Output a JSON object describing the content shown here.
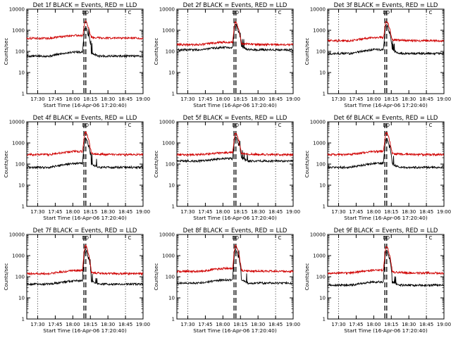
{
  "chart_data": {
    "type": "line",
    "grid": false,
    "yscale": "log",
    "xlabel": "Start Time (16-Apr-06 17:20:40)",
    "ylabel": "Counts/sec",
    "xticks": [
      "17:30",
      "17:45",
      "18:00",
      "18:15",
      "18:30",
      "18:45",
      "19:00"
    ],
    "yticks": [
      "1",
      "10",
      "100",
      "1000",
      "10000"
    ],
    "ylim": [
      1,
      10000
    ],
    "xlim": [
      "17:20:40",
      "19:00"
    ],
    "markers": [
      "D",
      "D",
      "C"
    ],
    "colors": {
      "events": "#000000",
      "lld": "#d00000"
    },
    "charts": [
      {
        "title": "Det 1f BLACK = Events, RED = LLD",
        "series": [
          {
            "name": "Events",
            "color": "#000000",
            "base": 60,
            "peak": 1300,
            "rise": 0.95,
            "spikes": 1
          },
          {
            "name": "LLD",
            "color": "#d00000",
            "base": 420,
            "peak": 2600,
            "rise": 0.6,
            "spikes": 0
          }
        ]
      },
      {
        "title": "Det 2f BLACK = Events, RED = LLD",
        "series": [
          {
            "name": "Events",
            "color": "#000000",
            "base": 120,
            "peak": 1900,
            "rise": 0.5,
            "spikes": 1
          },
          {
            "name": "LLD",
            "color": "#d00000",
            "base": 210,
            "peak": 2600,
            "rise": 0.5,
            "spikes": 0
          }
        ]
      },
      {
        "title": "Det 3f BLACK = Events, RED = LLD",
        "series": [
          {
            "name": "Events",
            "color": "#000000",
            "base": 80,
            "peak": 1800,
            "rise": 0.9,
            "spikes": 1
          },
          {
            "name": "LLD",
            "color": "#d00000",
            "base": 320,
            "peak": 2700,
            "rise": 0.7,
            "spikes": 0
          }
        ]
      },
      {
        "title": "Det 4f BLACK = Events, RED = LLD",
        "series": [
          {
            "name": "Events",
            "color": "#000000",
            "base": 70,
            "peak": 1700,
            "rise": 0.9,
            "spikes": 1
          },
          {
            "name": "LLD",
            "color": "#d00000",
            "base": 280,
            "peak": 3300,
            "rise": 0.7,
            "spikes": 0
          }
        ]
      },
      {
        "title": "Det 5f BLACK = Events, RED = LLD",
        "series": [
          {
            "name": "Events",
            "color": "#000000",
            "base": 140,
            "peak": 1900,
            "rise": 0.5,
            "spikes": 1
          },
          {
            "name": "LLD",
            "color": "#d00000",
            "base": 280,
            "peak": 2900,
            "rise": 0.4,
            "spikes": 0
          }
        ]
      },
      {
        "title": "Det 6f BLACK = Events, RED = LLD",
        "series": [
          {
            "name": "Events",
            "color": "#000000",
            "base": 70,
            "peak": 1600,
            "rise": 0.9,
            "spikes": 1
          },
          {
            "name": "LLD",
            "color": "#d00000",
            "base": 280,
            "peak": 3100,
            "rise": 0.7,
            "spikes": 0
          }
        ]
      },
      {
        "title": "Det 7f BLACK = Events, RED = LLD",
        "series": [
          {
            "name": "Events",
            "color": "#000000",
            "base": 45,
            "peak": 1900,
            "rise": 0.7,
            "spikes": 1
          },
          {
            "name": "LLD",
            "color": "#d00000",
            "base": 140,
            "peak": 3000,
            "rise": 0.7,
            "spikes": 0
          }
        ]
      },
      {
        "title": "Det 8f BLACK = Events, RED = LLD",
        "series": [
          {
            "name": "Events",
            "color": "#000000",
            "base": 50,
            "peak": 1900,
            "rise": 0.7,
            "spikes": 1
          },
          {
            "name": "LLD",
            "color": "#d00000",
            "base": 180,
            "peak": 3100,
            "rise": 0.6,
            "spikes": 0
          }
        ]
      },
      {
        "title": "Det 9f BLACK = Events, RED = LLD",
        "series": [
          {
            "name": "Events",
            "color": "#000000",
            "base": 40,
            "peak": 1700,
            "rise": 0.7,
            "spikes": 1
          },
          {
            "name": "LLD",
            "color": "#d00000",
            "base": 150,
            "peak": 2700,
            "rise": 0.6,
            "spikes": 0
          }
        ]
      }
    ]
  }
}
